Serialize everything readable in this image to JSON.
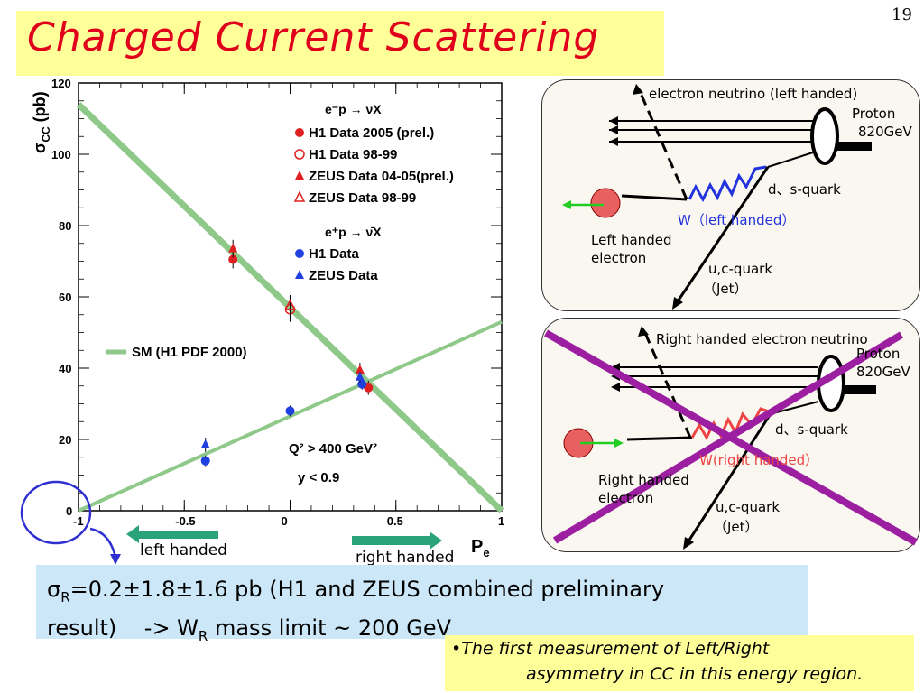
{
  "slide": {
    "title": "Charged Current Scattering",
    "page_number": "19"
  },
  "chart_data": {
    "type": "scatter",
    "xlabel": "P",
    "xlabel_sub": "e",
    "ylabel": "σ",
    "ylabel_sub": "CC",
    "ylabel_unit": "(pb)",
    "xlim": [
      -1,
      1
    ],
    "ylim": [
      0,
      120
    ],
    "xticks": [
      "-1",
      "-0.5",
      "0",
      "0.5",
      "1"
    ],
    "yticks": [
      "0",
      "20",
      "40",
      "60",
      "80",
      "100",
      "120"
    ],
    "legend": {
      "group1_header": "e⁻p → νX",
      "group2_header": "e⁺p → ν̄X",
      "entries": [
        {
          "label": "H1 Data 2005 (prel.)",
          "marker": "filled-circle",
          "color": "#e02020"
        },
        {
          "label": "H1 Data 98-99",
          "marker": "open-circle",
          "color": "#e02020"
        },
        {
          "label": "ZEUS Data 04-05(prel.)",
          "marker": "filled-triangle",
          "color": "#e02020"
        },
        {
          "label": "ZEUS Data 98-99",
          "marker": "open-triangle",
          "color": "#e02020"
        },
        {
          "label": "H1 Data",
          "marker": "filled-circle",
          "color": "#2040e0"
        },
        {
          "label": "ZEUS Data",
          "marker": "filled-triangle",
          "color": "#2040e0"
        }
      ],
      "sm_label": "SM (H1 PDF 2000)"
    },
    "annotations": [
      "Q² > 400 GeV²",
      "y < 0.9"
    ],
    "series": [
      {
        "name": "SM e⁻p",
        "type": "band",
        "x": [
          -1,
          1
        ],
        "y": [
          114,
          0
        ],
        "color": "#8fc98a"
      },
      {
        "name": "SM e⁺p",
        "type": "band",
        "x": [
          -1,
          1
        ],
        "y": [
          0,
          53
        ],
        "color": "#8fc98a"
      },
      {
        "name": "H1 Data 2005 (prel.)",
        "x": [
          -0.27,
          0.37
        ],
        "y": [
          70.5,
          34.5
        ],
        "yerr": [
          2.5,
          2.0
        ]
      },
      {
        "name": "H1 Data 98-99",
        "x": [
          0.0
        ],
        "y": [
          56.5
        ],
        "yerr": [
          3.5
        ]
      },
      {
        "name": "ZEUS Data 04-05(prel.)",
        "x": [
          -0.27,
          0.33
        ],
        "y": [
          73.5,
          39.5
        ],
        "yerr": [
          2.5,
          2.0
        ]
      },
      {
        "name": "ZEUS Data 98-99",
        "x": [
          0.0
        ],
        "y": [
          57.5
        ],
        "yerr": [
          3.0
        ]
      },
      {
        "name": "H1 Data",
        "x": [
          -0.4,
          0.0,
          0.34
        ],
        "y": [
          14.0,
          28.0,
          35.5
        ],
        "yerr": [
          1.5,
          1.5,
          1.5
        ]
      },
      {
        "name": "ZEUS Data",
        "x": [
          -0.4,
          0.33
        ],
        "y": [
          18.5,
          37.5
        ],
        "yerr": [
          2.0,
          1.5
        ]
      }
    ],
    "handed_labels": {
      "left": "left handed",
      "right": "right handed"
    }
  },
  "diagram_top": {
    "neutrino": "electron neutrino (left handed)",
    "proton": "Proton",
    "energy": "820GeV",
    "quark_ds": "d、s-quark",
    "boson": "W（left handed）",
    "electron_line1": "Left handed",
    "electron_line2": "electron",
    "jet_line1": "u,c-quark",
    "jet_line2": "（Jet）"
  },
  "diagram_bottom": {
    "neutrino": "Right handed electron neutrino",
    "proton": "Proton",
    "energy": "820GeV",
    "quark_ds": "d、s-quark",
    "boson": "W(right handed）",
    "electron_line1": "Right handed",
    "electron_line2": "electron",
    "jet_line1": "u,c-quark",
    "jet_line2": "（Jet）"
  },
  "result": {
    "sigma": "σ",
    "sigma_sub": "R",
    "line1_rest": "=0.2±1.8±1.6 pb (H1 and ZEUS combined preliminary",
    "line2_a": "result)    -> W",
    "line2_sub": "R",
    "line2_b": " mass limit ~ 200 GeV"
  },
  "note": {
    "line1": "•The first measurement of Left/Right",
    "line2": "asymmetry in CC in this energy region."
  },
  "colors": {
    "title_red": "#e0001b",
    "title_bg": "#ffff99",
    "result_bg": "#cce8f8",
    "sm_band": "#8fc98a",
    "cross": "#9b1fa0",
    "arrow_green": "#2aa37a"
  }
}
